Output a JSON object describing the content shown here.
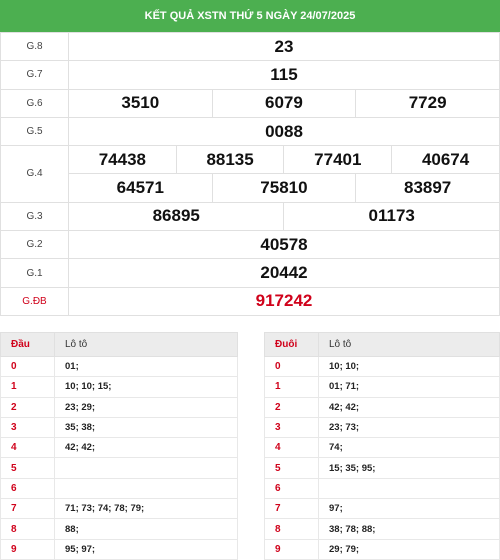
{
  "header": {
    "title": "KẾT QUẢ XSTN THỨ 5 NGÀY 24/07/2025"
  },
  "prizes": {
    "g8": {
      "label": "G.8",
      "values": [
        "23"
      ]
    },
    "g7": {
      "label": "G.7",
      "values": [
        "115"
      ]
    },
    "g6": {
      "label": "G.6",
      "values": [
        "3510",
        "6079",
        "7729"
      ]
    },
    "g5": {
      "label": "G.5",
      "values": [
        "0088"
      ]
    },
    "g4": {
      "label": "G.4",
      "values": [
        "74438",
        "88135",
        "77401",
        "40674",
        "64571",
        "75810",
        "83897"
      ]
    },
    "g3": {
      "label": "G.3",
      "values": [
        "86895",
        "01173"
      ]
    },
    "g2": {
      "label": "G.2",
      "values": [
        "40578"
      ]
    },
    "g1": {
      "label": "G.1",
      "values": [
        "20442"
      ]
    },
    "gdb": {
      "label": "G.ĐB",
      "values": [
        "917242"
      ]
    }
  },
  "loto_dau": {
    "col1": "Đầu",
    "col2": "Lô tô",
    "rows": [
      {
        "k": "0",
        "v": "01;"
      },
      {
        "k": "1",
        "v": "10; 10; 15;"
      },
      {
        "k": "2",
        "v": "23; 29;"
      },
      {
        "k": "3",
        "v": "35; 38;"
      },
      {
        "k": "4",
        "v": "42; 42;"
      },
      {
        "k": "5",
        "v": ""
      },
      {
        "k": "6",
        "v": ""
      },
      {
        "k": "7",
        "v": "71; 73; 74; 78; 79;"
      },
      {
        "k": "8",
        "v": "88;"
      },
      {
        "k": "9",
        "v": "95; 97;"
      }
    ]
  },
  "loto_duoi": {
    "col1": "Đuôi",
    "col2": "Lô tô",
    "rows": [
      {
        "k": "0",
        "v": "10; 10;"
      },
      {
        "k": "1",
        "v": "01; 71;"
      },
      {
        "k": "2",
        "v": "42; 42;"
      },
      {
        "k": "3",
        "v": "23; 73;"
      },
      {
        "k": "4",
        "v": "74;"
      },
      {
        "k": "5",
        "v": "15; 35; 95;"
      },
      {
        "k": "6",
        "v": ""
      },
      {
        "k": "7",
        "v": "97;"
      },
      {
        "k": "8",
        "v": "38; 78; 88;"
      },
      {
        "k": "9",
        "v": "29; 79;"
      }
    ]
  },
  "colors": {
    "header_bg": "#4caf50",
    "accent_red": "#d0021b"
  }
}
